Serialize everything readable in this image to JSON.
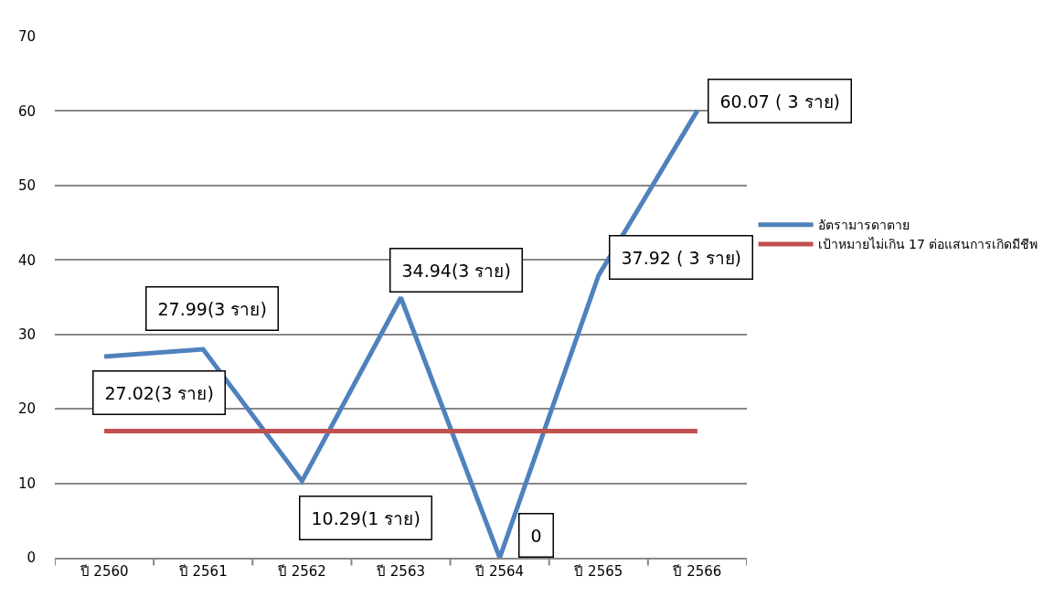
{
  "chart_data": {
    "type": "line",
    "categories": [
      "ปี 2560",
      "ปี 2561",
      "ปี 2562",
      "ปี 2563",
      "ปี 2564",
      "ปี 2565",
      "ปี 2566"
    ],
    "series": [
      {
        "name": "อัตรามารดาตาย",
        "color": "#4f81bd",
        "values": [
          27.02,
          27.99,
          10.29,
          34.94,
          0,
          37.92,
          60.07
        ],
        "value_labels": [
          "27.02(3 ราย)",
          "27.99(3 ราย)",
          "10.29(1 ราย)",
          "34.94(3 ราย)",
          "0",
          "37.92 ( 3 ราย)",
          "60.07 ( 3 ราย)"
        ]
      },
      {
        "name": "เป้าหมายไม่เกิน 17 ต่อแสนการเกิดมีชีพ",
        "color": "#c0504d",
        "values": [
          17,
          17,
          17,
          17,
          17,
          17,
          17
        ]
      }
    ],
    "ylim": [
      0,
      70
    ],
    "yticks": [
      0,
      10,
      20,
      30,
      40,
      50,
      60,
      70
    ],
    "grid": "y",
    "legend": "right",
    "marker": "none",
    "line_style": "solid"
  }
}
